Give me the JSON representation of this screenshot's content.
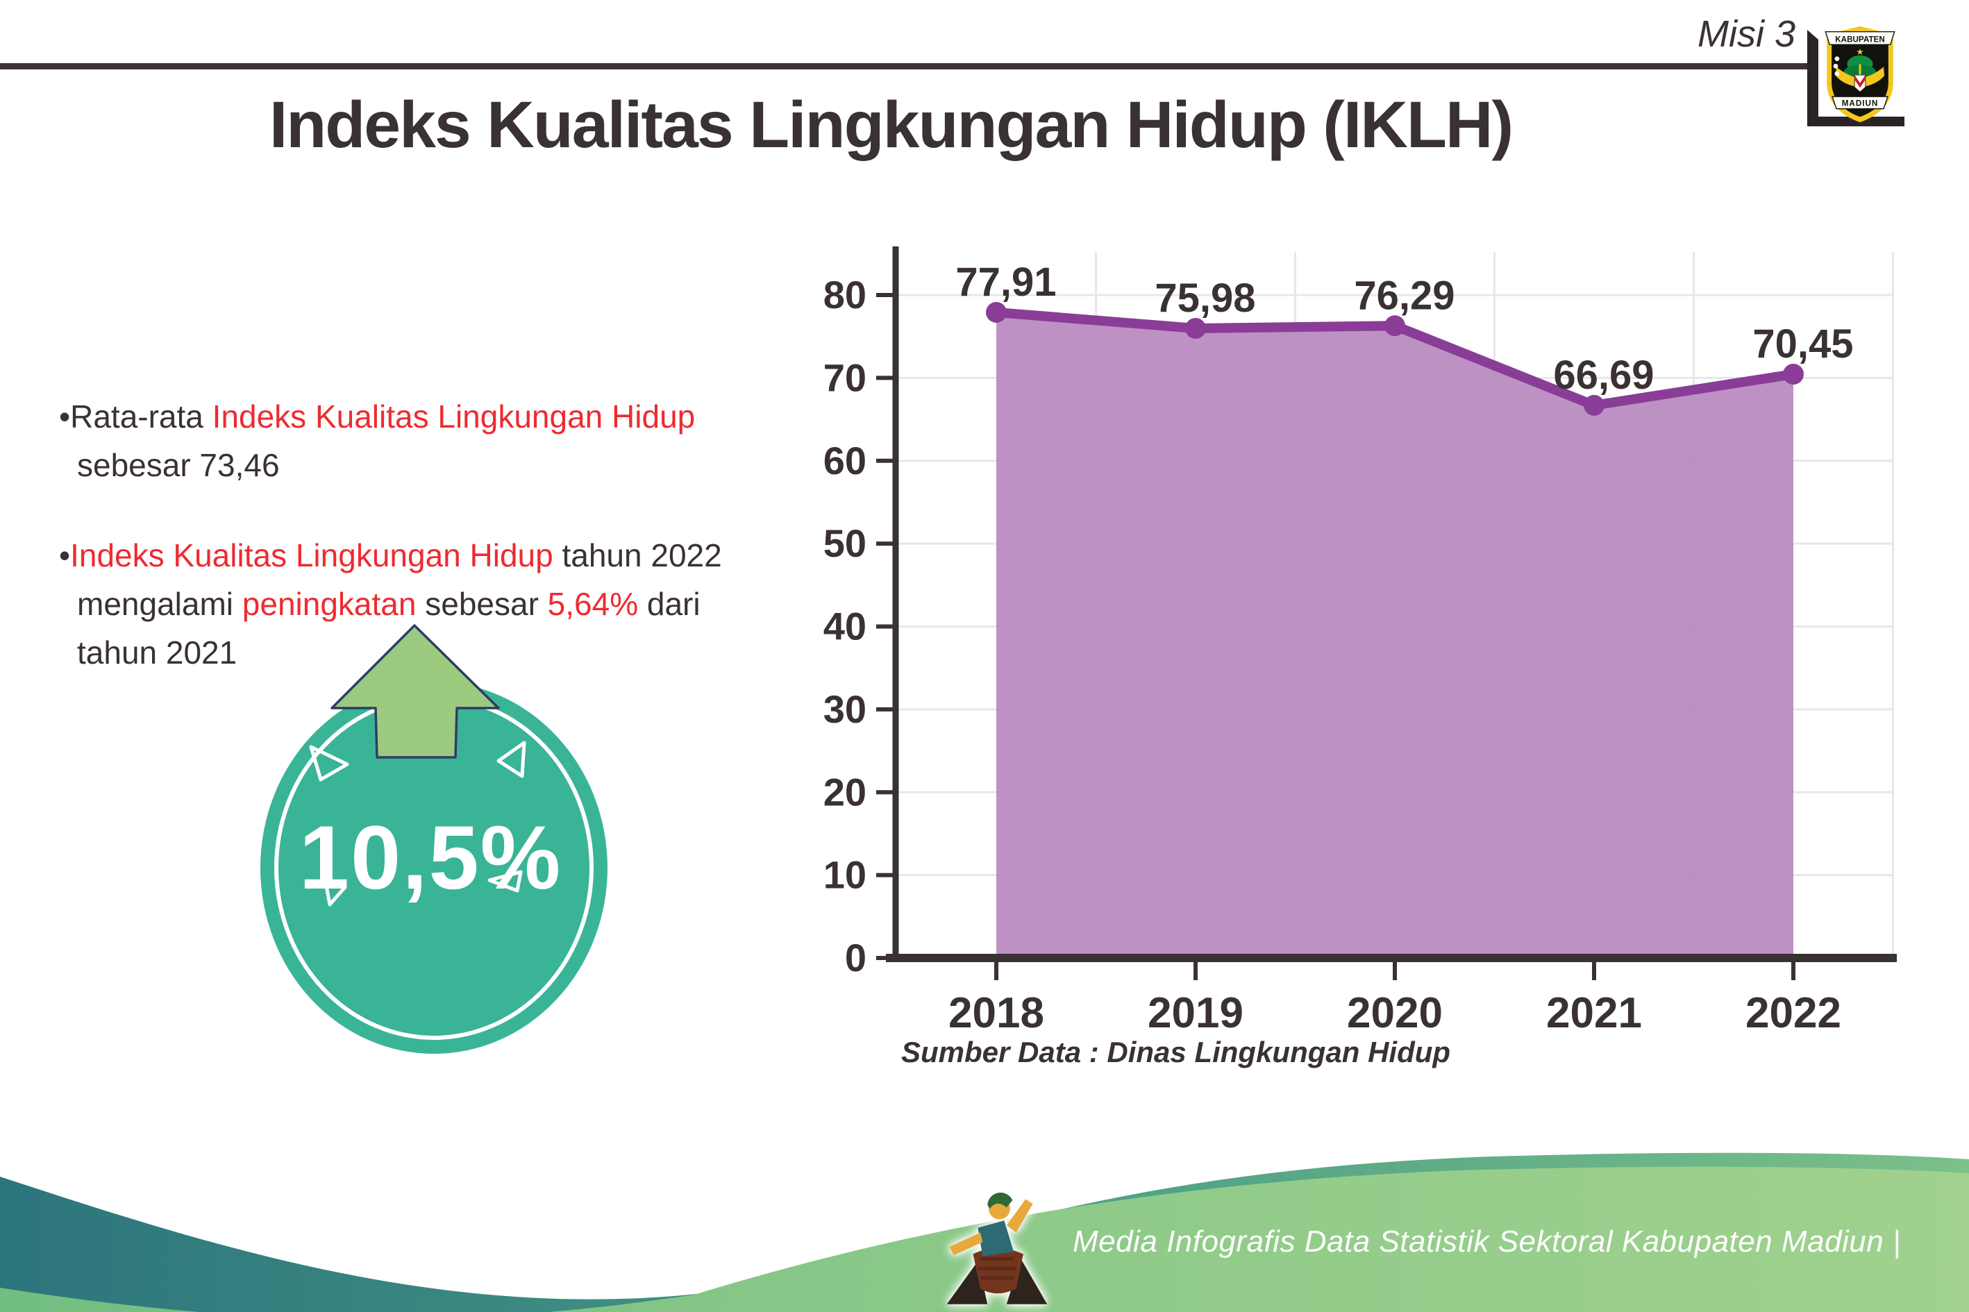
{
  "header": {
    "misi_label": "Misi 3",
    "title": "Indeks Kualitas Lingkungan Hidup (IKLH)",
    "logo": {
      "top": "KABUPATEN",
      "bottom": "MADIUN"
    }
  },
  "bullets": {
    "marker": "•",
    "b1": {
      "s1": "Rata-rata ",
      "s2": "Indeks Kualitas Lingkungan Hidup",
      "s3": " sebesar 73,46"
    },
    "b2": {
      "s1": "Indeks Kualitas Lingkungan Hidup",
      "s2": " tahun 2022 mengalami ",
      "s3": "peningkatan",
      "s4": " sebesar ",
      "s5": "5,64%",
      "s6": " dari tahun 2021"
    }
  },
  "badge": {
    "value": "10,5%"
  },
  "chart_data": {
    "type": "area",
    "categories": [
      "2018",
      "2019",
      "2020",
      "2021",
      "2022"
    ],
    "values": [
      77.91,
      75.98,
      76.29,
      66.69,
      70.45
    ],
    "point_labels": [
      "77,91",
      "75,98",
      "76,29",
      "66,69",
      "70,45"
    ],
    "title": "",
    "xlabel": "",
    "ylabel": "",
    "ylim": [
      0,
      80
    ],
    "ytick_step": 10,
    "grid": true,
    "legend": "none",
    "source_note": "Sumber Data : Dinas Lingkungan Hidup",
    "colors": {
      "line": "#8a3d96",
      "fill": "#b685be",
      "labels": "#3a3132",
      "grid": "#e8e6eb",
      "axis": "#3a3132"
    }
  },
  "footer": {
    "credit": "Media Infografis Data Statistik Sektoral Kabupaten Madiun |"
  },
  "colors": {
    "accent_red": "#ed2b31",
    "text_dark": "#3a3132",
    "badge_teal": "#39b497",
    "arrow_green": "#9ccb7f",
    "footer_teal": "#2c757d",
    "footer_green": "#8fca89"
  }
}
